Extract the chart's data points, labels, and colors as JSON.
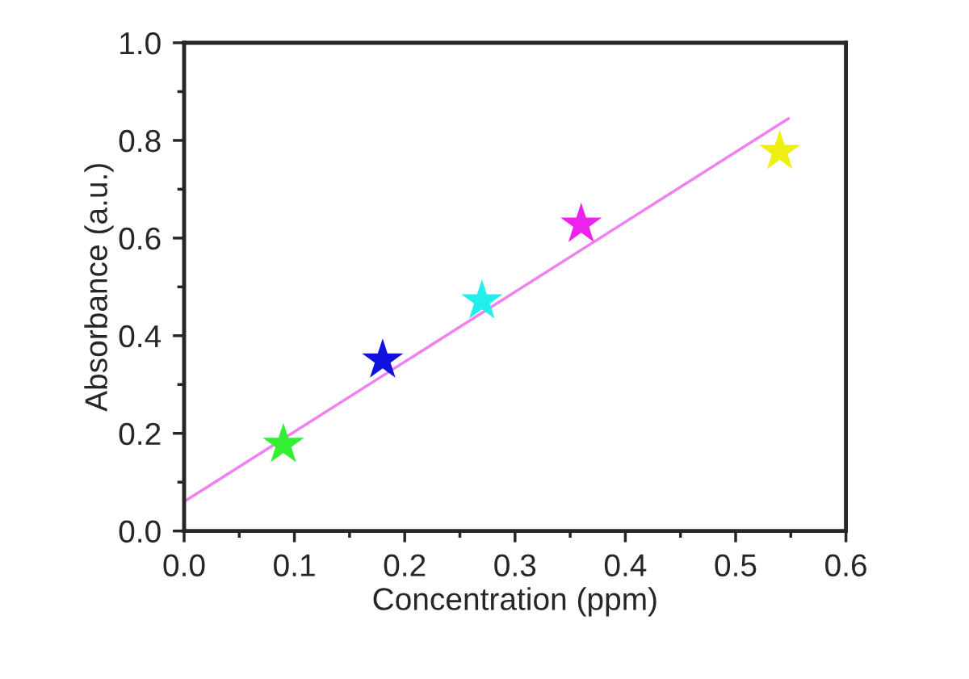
{
  "chart_data": {
    "type": "scatter",
    "xlabel": "Concentration (ppm)",
    "ylabel": "Absorbance (a.u.)",
    "xlim": [
      0,
      0.6
    ],
    "xticks": [
      {
        "value": 0,
        "label": "0.0"
      },
      0.1,
      0.2,
      0.3,
      0.4,
      0.5,
      0.6
    ],
    "ylim": [
      0,
      1.0
    ],
    "yticks": [
      {
        "value": 0,
        "label": "0.0"
      },
      0.2,
      0.4,
      0.6,
      0.8,
      {
        "value": 1.0,
        "label": "1.0"
      }
    ],
    "grid": false,
    "legend": false,
    "marker": "star",
    "series": [
      {
        "x": [
          0.09,
          0.18,
          0.27,
          0.36,
          0.54
        ],
        "values": [
          0.177,
          0.35,
          0.471,
          0.628,
          0.777
        ],
        "colors": [
          "#33ee33",
          "#1111dd",
          "#22eeee",
          "#ee22ee",
          "#eeee11"
        ]
      },
      {
        "type": "line",
        "x": [
          0,
          0.548
        ],
        "values": [
          0.06,
          0.845
        ],
        "color": "#ee82ee",
        "marker": "none",
        "line_style": "solid"
      }
    ]
  }
}
